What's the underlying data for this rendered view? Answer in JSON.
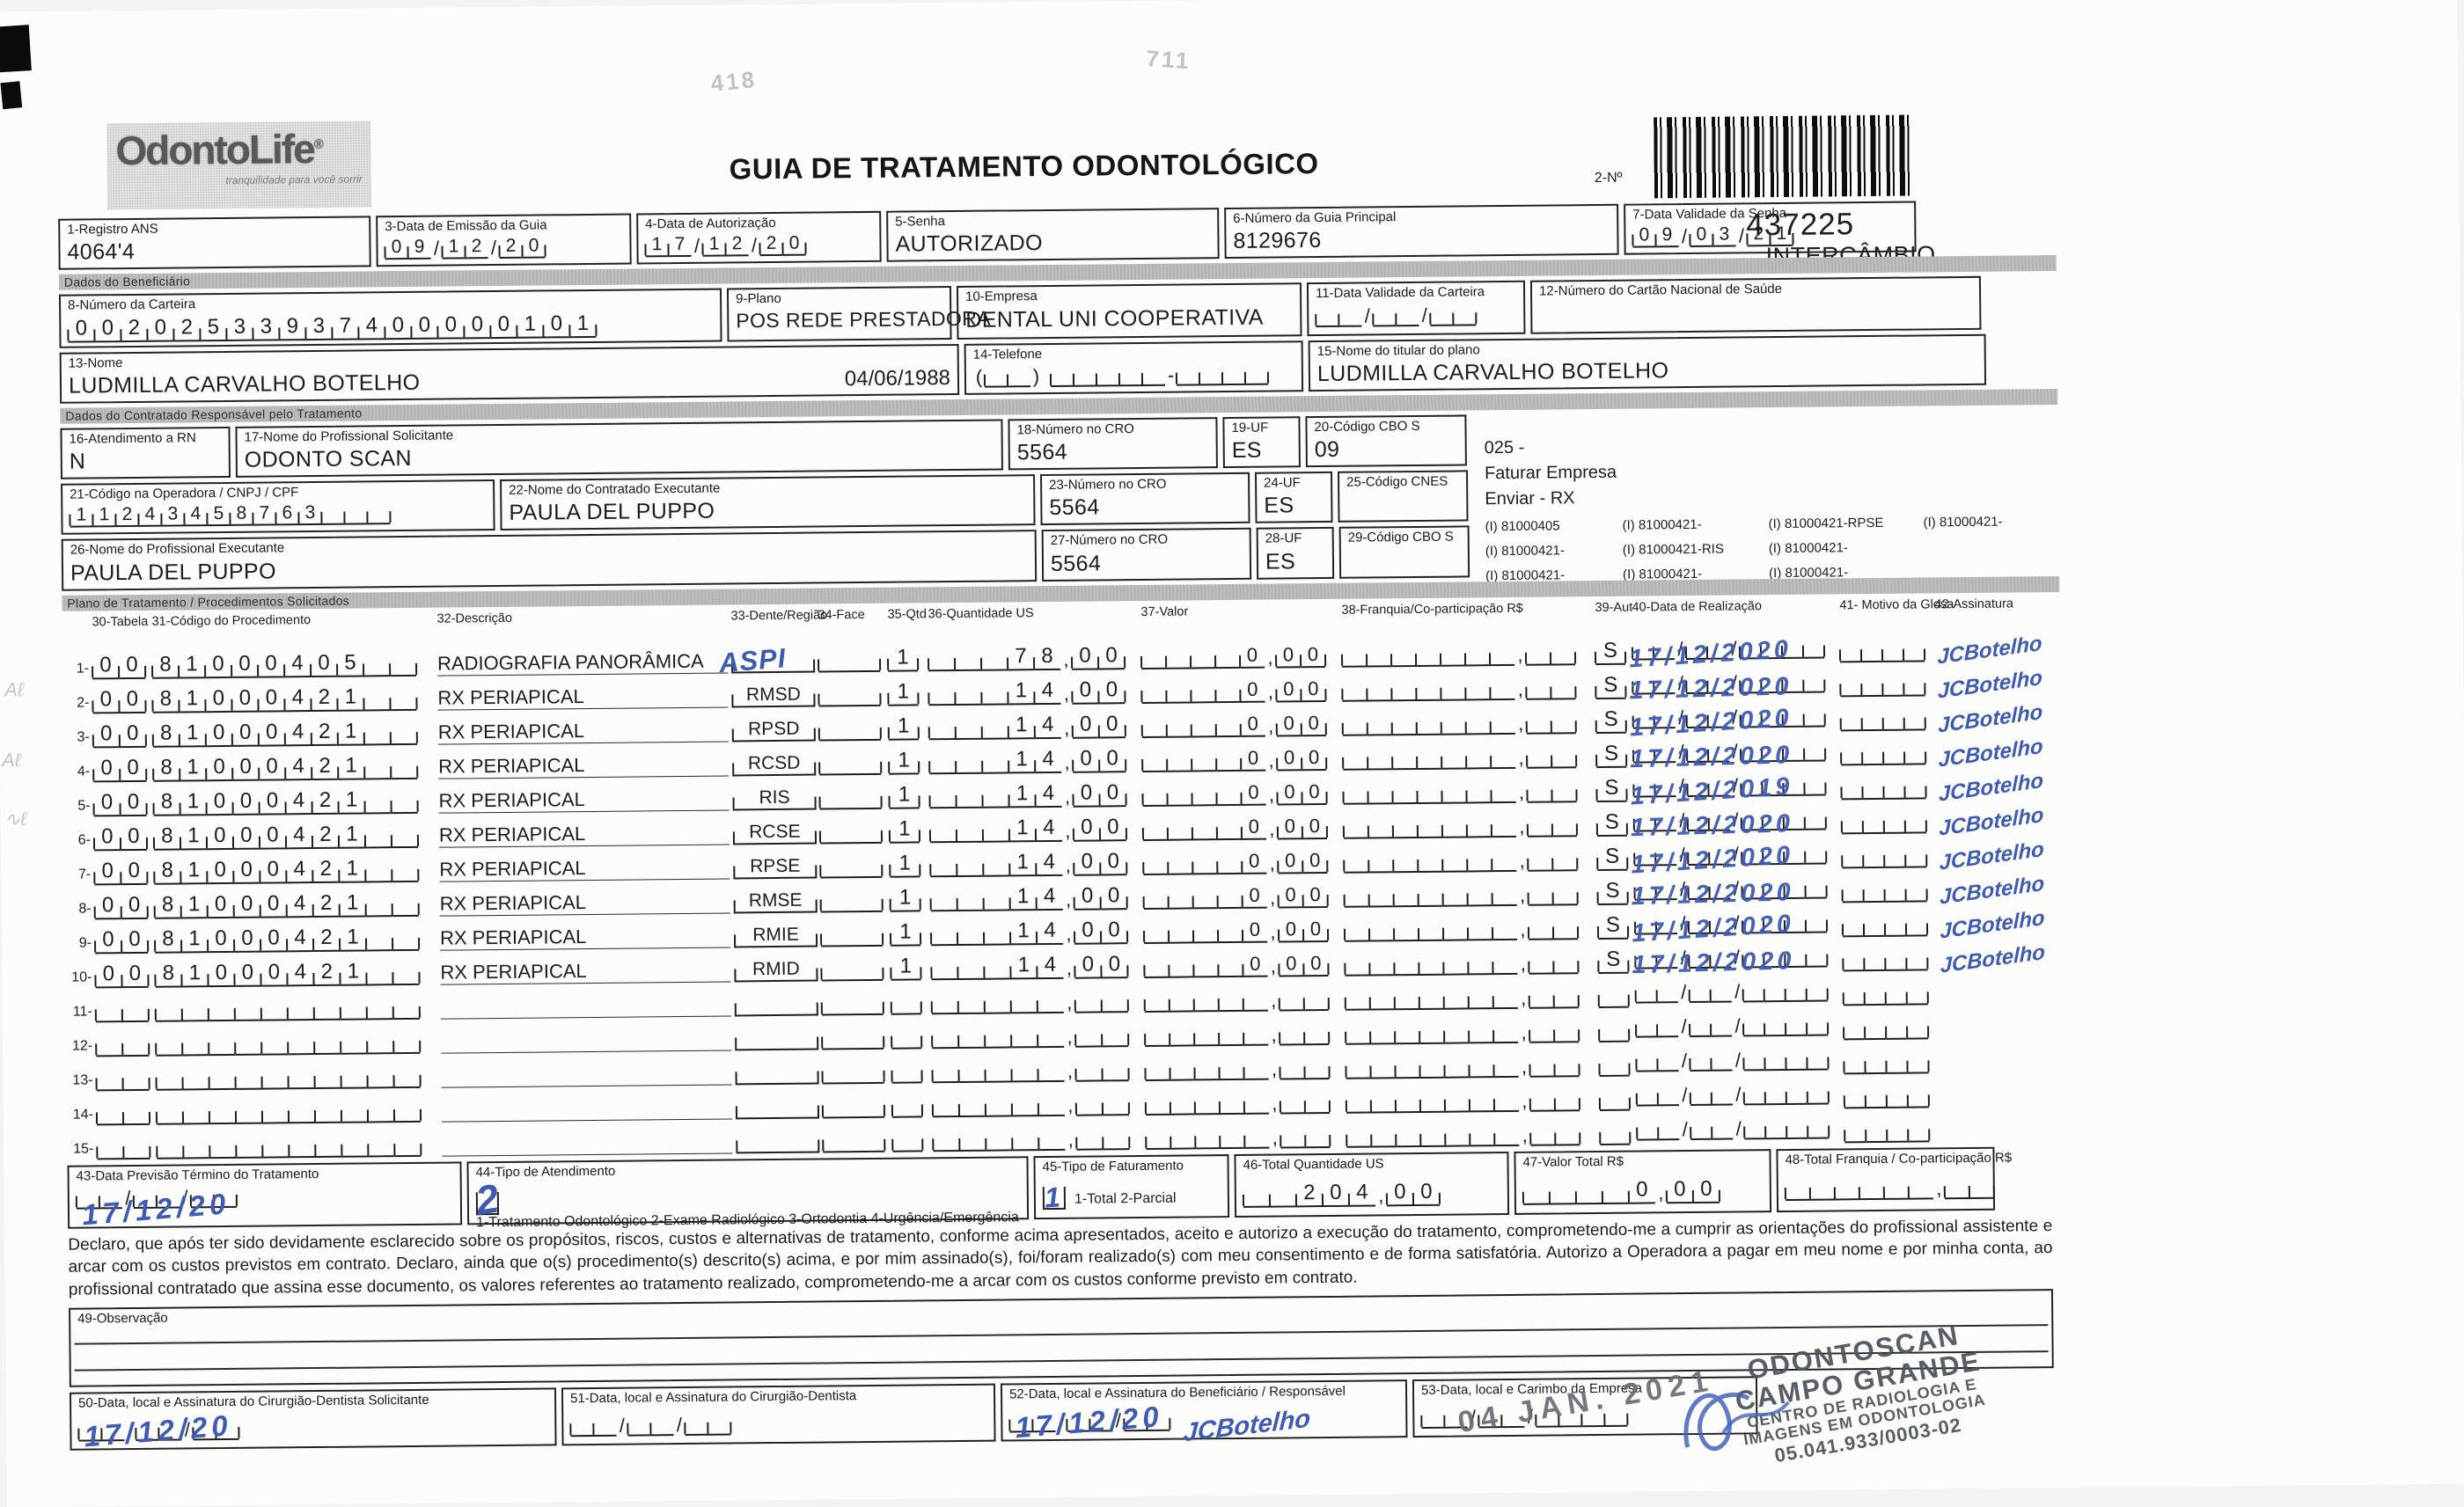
{
  "header": {
    "logo_name": "OdontoLife",
    "logo_reg": "®",
    "logo_tagline": "tranquilidade para você sorrir",
    "title": "GUIA DE TRATAMENTO ODONTOLÓGICO",
    "field2_label": "2-Nº",
    "barcode_number": "437225",
    "barcode_subtitle": "INTERCÂMBIO"
  },
  "sections": {
    "beneficiary": "Dados do Beneficiário",
    "contractor": "Dados do Contratado Responsável pelo Tratamento",
    "treatment_plan": "Plano de Tratamento / Procedimentos Solicitados"
  },
  "fields": {
    "f1": {
      "label": "1-Registro ANS",
      "value": "4064'4"
    },
    "f3": {
      "label": "3-Data de Emissão da Guia",
      "value": "09/12/20"
    },
    "f4": {
      "label": "4-Data de Autorização",
      "value": "17/12/20"
    },
    "f5": {
      "label": "5-Senha",
      "value": "AUTORIZADO"
    },
    "f6": {
      "label": "6-Número da Guia Principal",
      "value": "8129676"
    },
    "f7": {
      "label": "7-Data Validade da Senha",
      "value": "09/03/21"
    },
    "f8": {
      "label": "8-Número da Carteira",
      "value": "00202533937400000101"
    },
    "f9": {
      "label": "9-Plano",
      "value": "POS REDE PRESTADORA"
    },
    "f10": {
      "label": "10-Empresa",
      "value": "DENTAL UNI COOPERATIVA"
    },
    "f11": {
      "label": "11-Data Validade da Carteira",
      "value": "  /  /  "
    },
    "f12": {
      "label": "12-Número do Cartão Nacional de Saúde",
      "value": ""
    },
    "f13": {
      "label": "13-Nome",
      "value": "LUDMILLA CARVALHO BOTELHO",
      "extra": "04/06/1988"
    },
    "f14": {
      "label": "14-Telefone",
      "value": "(  ).     -    "
    },
    "f15": {
      "label": "15-Nome do titular do plano",
      "value": "LUDMILLA CARVALHO BOTELHO"
    },
    "f16": {
      "label": "16-Atendimento a RN",
      "value": "N"
    },
    "f17": {
      "label": "17-Nome do Profissional Solicitante",
      "value": "ODONTO SCAN"
    },
    "f18": {
      "label": "18-Número no CRO",
      "value": "5564"
    },
    "f19": {
      "label": "19-UF",
      "value": "ES"
    },
    "f20": {
      "label": "20-Código CBO S",
      "value": "09"
    },
    "f21": {
      "label": "21-Código na Operadora / CNPJ / CPF",
      "value": "11243458763   "
    },
    "f22": {
      "label": "22-Nome do Contratado Executante",
      "value": "PAULA DEL PUPPO"
    },
    "f23": {
      "label": "23-Número no CRO",
      "value": "5564"
    },
    "f24": {
      "label": "24-UF",
      "value": "ES"
    },
    "f25": {
      "label": "25-Código CNES",
      "value": ""
    },
    "f26": {
      "label": "26-Nome do Profissional Executante",
      "value": "PAULA DEL PUPPO"
    },
    "f27": {
      "label": "27-Número no CRO",
      "value": "5564"
    },
    "f28": {
      "label": "28-UF",
      "value": "ES"
    },
    "f29": {
      "label": "29-Código CBO S",
      "value": ""
    },
    "f43": {
      "label": "43-Data Previsão Término do Tratamento",
      "value": "  /  /  ",
      "handwritten": "17/12/20"
    },
    "f44": {
      "label": "44-Tipo de Atendimento",
      "options": "1-Tratamento Odontológico  2-Exame Radiológico  3-Ortodontia  4-Urgência/Emergência",
      "handwritten": "2"
    },
    "f45": {
      "label": "45-Tipo de Faturamento",
      "options": "1-Total  2-Parcial",
      "handwritten": "1"
    },
    "f46": {
      "label": "46-Total Quantidade US",
      "value": "  204,00"
    },
    "f47": {
      "label": "47-Valor Total R$",
      "value": "    0,00"
    },
    "f48": {
      "label": "48-Total Franquia / Co-participação R$",
      "value": "      ,  "
    },
    "f49": {
      "label": "49-Observação"
    },
    "f50": {
      "label": "50-Data, local e Assinatura do Cirurgião-Dentista Solicitante",
      "value": "  /  /  ",
      "handwritten": "17/12/20"
    },
    "f51": {
      "label": "51-Data, local e Assinatura do Cirurgião-Dentista",
      "value": "  /  /  "
    },
    "f52": {
      "label": "52-Data, local e Assinatura do Beneficiário / Responsável",
      "value": "  /  /  ",
      "handwritten": "17/12/20",
      "signature": "JCBotelho"
    },
    "f53": {
      "label": "53-Data, local e Carimbo da Empresa",
      "value": "  /  /    "
    }
  },
  "side_note": {
    "code": "025 -",
    "line2": "Faturar Empresa",
    "line3": "Enviar - RX",
    "codes": [
      [
        "(I) 81000405",
        "(I) 81000421-",
        "(I) 81000421-RPSE",
        "(I) 81000421-"
      ],
      [
        "(I) 81000421-",
        "(I) 81000421-RIS",
        "(I) 81000421-",
        ""
      ],
      [
        "(I) 81000421-",
        "(I) 81000421-",
        "(I) 81000421-",
        ""
      ]
    ]
  },
  "table": {
    "headers": [
      "30-Tabela",
      "31-Código do Procedimento",
      "32-Descrição",
      "33-Dente/Região",
      "34-Face",
      "35-Qtd",
      "36-Quantidade US",
      "37-Valor",
      "38-Franquia/Co-participação R$",
      "39-Aut",
      "40-Data de Realização",
      "41- Motivo da Glosa",
      "42-Assinatura"
    ],
    "rows": [
      {
        "n": "1-",
        "tabela": "00",
        "codigo": "81000405  ",
        "desc": "RADIOGRAFIA PANORÂMICA",
        "dente": "",
        "dente_hand": "ASPI",
        "face": " ",
        "qtd": "1",
        "us": "   78,00",
        "valor": "    0,00",
        "franquia": "       ,  ",
        "aut": "S",
        "data": "  /  /    ",
        "data_hand": "17/12/2020",
        "motivo": "    ",
        "sig": "JCBotelho"
      },
      {
        "n": "2-",
        "tabela": "00",
        "codigo": "81000421  ",
        "desc": "RX PERIAPICAL",
        "dente": "RMSD",
        "dente_hand": "",
        "face": " ",
        "qtd": "1",
        "us": "   14,00",
        "valor": "    0,00",
        "franquia": "       ,  ",
        "aut": "S",
        "data": "  /  /    ",
        "data_hand": "17/12/2020",
        "motivo": "    ",
        "sig": "JCBotelho"
      },
      {
        "n": "3-",
        "tabela": "00",
        "codigo": "81000421  ",
        "desc": "RX PERIAPICAL",
        "dente": "RPSD",
        "dente_hand": "",
        "face": " ",
        "qtd": "1",
        "us": "   14,00",
        "valor": "    0,00",
        "franquia": "       ,  ",
        "aut": "S",
        "data": "  /  /    ",
        "data_hand": "17/12/2020",
        "motivo": "    ",
        "sig": "JCBotelho"
      },
      {
        "n": "4-",
        "tabela": "00",
        "codigo": "81000421  ",
        "desc": "RX PERIAPICAL",
        "dente": "RCSD",
        "dente_hand": "",
        "face": " ",
        "qtd": "1",
        "us": "   14,00",
        "valor": "    0,00",
        "franquia": "       ,  ",
        "aut": "S",
        "data": "  /  /    ",
        "data_hand": "17/12/2020",
        "motivo": "    ",
        "sig": "JCBotelho"
      },
      {
        "n": "5-",
        "tabela": "00",
        "codigo": "81000421  ",
        "desc": "RX PERIAPICAL",
        "dente": "RIS",
        "dente_hand": "",
        "face": " ",
        "qtd": "1",
        "us": "   14,00",
        "valor": "    0,00",
        "franquia": "       ,  ",
        "aut": "S",
        "data": "  /  /    ",
        "data_hand": "17/12/2019",
        "motivo": "    ",
        "sig": "JCBotelho"
      },
      {
        "n": "6-",
        "tabela": "00",
        "codigo": "81000421  ",
        "desc": "RX PERIAPICAL",
        "dente": "RCSE",
        "dente_hand": "",
        "face": " ",
        "qtd": "1",
        "us": "   14,00",
        "valor": "    0,00",
        "franquia": "       ,  ",
        "aut": "S",
        "data": "  /  /    ",
        "data_hand": "17/12/2020",
        "motivo": "    ",
        "sig": "JCBotelho"
      },
      {
        "n": "7-",
        "tabela": "00",
        "codigo": "81000421  ",
        "desc": "RX PERIAPICAL",
        "dente": "RPSE",
        "dente_hand": "",
        "face": " ",
        "qtd": "1",
        "us": "   14,00",
        "valor": "    0,00",
        "franquia": "       ,  ",
        "aut": "S",
        "data": "  /  /    ",
        "data_hand": "17/12/2020",
        "motivo": "    ",
        "sig": "JCBotelho"
      },
      {
        "n": "8-",
        "tabela": "00",
        "codigo": "81000421  ",
        "desc": "RX PERIAPICAL",
        "dente": "RMSE",
        "dente_hand": "",
        "face": " ",
        "qtd": "1",
        "us": "   14,00",
        "valor": "    0,00",
        "franquia": "       ,  ",
        "aut": "S",
        "data": "  /  /    ",
        "data_hand": "17/12/2020",
        "motivo": "    ",
        "sig": "JCBotelho"
      },
      {
        "n": "9-",
        "tabela": "00",
        "codigo": "81000421  ",
        "desc": "RX PERIAPICAL",
        "dente": "RMIE",
        "dente_hand": "",
        "face": " ",
        "qtd": "1",
        "us": "   14,00",
        "valor": "    0,00",
        "franquia": "       ,  ",
        "aut": "S",
        "data": "  /  /    ",
        "data_hand": "17/12/2020",
        "motivo": "    ",
        "sig": "JCBotelho"
      },
      {
        "n": "10-",
        "tabela": "00",
        "codigo": "81000421  ",
        "desc": "RX PERIAPICAL",
        "dente": "RMID",
        "dente_hand": "",
        "face": " ",
        "qtd": "1",
        "us": "   14,00",
        "valor": "    0,00",
        "franquia": "       ,  ",
        "aut": "S",
        "data": "  /  /    ",
        "data_hand": "17/12/2020",
        "motivo": "    ",
        "sig": "JCBotelho"
      },
      {
        "n": "11-",
        "tabela": "  ",
        "codigo": "          ",
        "desc": "",
        "dente": "",
        "dente_hand": "",
        "face": " ",
        "qtd": " ",
        "us": "     ,  ",
        "valor": "     ,  ",
        "franquia": "       ,  ",
        "aut": " ",
        "data": "  /  /    ",
        "data_hand": "",
        "motivo": "    ",
        "sig": ""
      },
      {
        "n": "12-",
        "tabela": "  ",
        "codigo": "          ",
        "desc": "",
        "dente": "",
        "dente_hand": "",
        "face": " ",
        "qtd": " ",
        "us": "     ,  ",
        "valor": "     ,  ",
        "franquia": "       ,  ",
        "aut": " ",
        "data": "  /  /    ",
        "data_hand": "",
        "motivo": "    ",
        "sig": ""
      },
      {
        "n": "13-",
        "tabela": "  ",
        "codigo": "          ",
        "desc": "",
        "dente": "",
        "dente_hand": "",
        "face": " ",
        "qtd": " ",
        "us": "     ,  ",
        "valor": "     ,  ",
        "franquia": "       ,  ",
        "aut": " ",
        "data": "  /  /    ",
        "data_hand": "",
        "motivo": "    ",
        "sig": ""
      },
      {
        "n": "14-",
        "tabela": "  ",
        "codigo": "          ",
        "desc": "",
        "dente": "",
        "dente_hand": "",
        "face": " ",
        "qtd": " ",
        "us": "     ,  ",
        "valor": "     ,  ",
        "franquia": "       ,  ",
        "aut": " ",
        "data": "  /  /    ",
        "data_hand": "",
        "motivo": "    ",
        "sig": ""
      },
      {
        "n": "15-",
        "tabela": "  ",
        "codigo": "          ",
        "desc": "",
        "dente": "",
        "dente_hand": "",
        "face": " ",
        "qtd": " ",
        "us": "     ,  ",
        "valor": "     ,  ",
        "franquia": "       ,  ",
        "aut": " ",
        "data": "  /  /    ",
        "data_hand": "",
        "motivo": "    ",
        "sig": ""
      }
    ]
  },
  "declaration": "Declaro, que após ter sido devidamente esclarecido sobre os propósitos, riscos, custos e alternativas de tratamento, conforme acima apresentados, aceito e autorizo a execução do tratamento, comprometendo-me a cumprir as orientações do profissional assistente e arcar com os custos previstos em contrato. Declaro, ainda que o(s) procedimento(s) descrito(s) acima, e por mim assinado(s), foi/foram realizado(s) com meu consentimento e de forma satisfatória. Autorizo a Operadora a pagar em meu nome e por minha conta, ao profissional contratado que assina esse documento, os valores referentes ao tratamento realizado, comprometendo-me a arcar com os custos conforme previsto em contrato.",
  "footer": {
    "date_stamp": "04 JAN. 2021",
    "company_stamp": [
      "ODONTOSCAN",
      "CAMPO GRANDE",
      "CENTRO DE RADIOLOGIA E",
      "IMAGENS EM ODONTOLOGIA",
      "05.041.933/0003-02"
    ]
  },
  "artifacts": {
    "ghost_left": "418",
    "ghost_right": "711"
  }
}
